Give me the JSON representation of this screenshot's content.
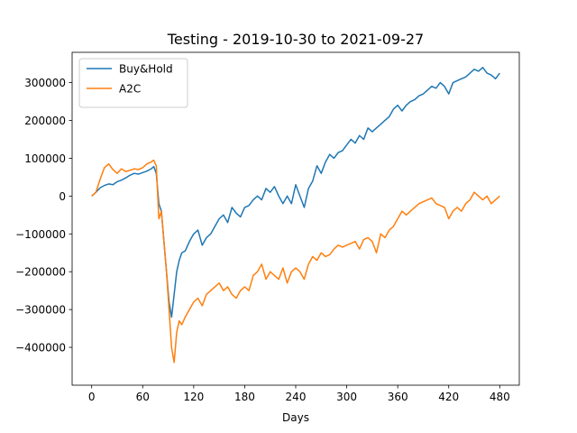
{
  "chart_data": {
    "type": "line",
    "title": "Testing - 2019-10-30 to 2021-09-27",
    "xlabel": "Days",
    "ylabel": "",
    "xlim": [
      -23,
      503
    ],
    "ylim": [
      -500000,
      380000
    ],
    "xticks": [
      0,
      60,
      120,
      180,
      240,
      300,
      360,
      420,
      480
    ],
    "xtick_labels": [
      "0",
      "60",
      "120",
      "180",
      "240",
      "300",
      "360",
      "420",
      "480"
    ],
    "yticks": [
      -400000,
      -300000,
      -200000,
      -100000,
      0,
      100000,
      200000,
      300000
    ],
    "ytick_labels": [
      "−400000",
      "−300000",
      "−200000",
      "−100000",
      "0",
      "100000",
      "200000",
      "300000"
    ],
    "grid": false,
    "legend_position": "top-left",
    "series": [
      {
        "name": "Buy&Hold",
        "color": "#1f77b4",
        "x": [
          0,
          5,
          10,
          15,
          20,
          25,
          30,
          35,
          40,
          45,
          50,
          55,
          60,
          65,
          70,
          73,
          76,
          79,
          82,
          85,
          88,
          91,
          94,
          97,
          100,
          103,
          106,
          110,
          115,
          120,
          125,
          130,
          135,
          140,
          145,
          150,
          155,
          160,
          165,
          170,
          175,
          180,
          185,
          190,
          195,
          200,
          205,
          210,
          215,
          220,
          225,
          230,
          235,
          240,
          245,
          250,
          255,
          260,
          265,
          270,
          275,
          280,
          285,
          290,
          295,
          300,
          305,
          310,
          315,
          320,
          325,
          330,
          335,
          340,
          345,
          350,
          355,
          360,
          365,
          370,
          375,
          380,
          385,
          390,
          395,
          400,
          405,
          410,
          415,
          420,
          425,
          430,
          435,
          440,
          445,
          450,
          455,
          460,
          465,
          470,
          475,
          480
        ],
        "y": [
          0,
          10000,
          22000,
          28000,
          32000,
          30000,
          38000,
          42000,
          48000,
          55000,
          60000,
          58000,
          62000,
          66000,
          72000,
          78000,
          60000,
          -20000,
          -40000,
          -120000,
          -200000,
          -280000,
          -320000,
          -260000,
          -200000,
          -170000,
          -150000,
          -145000,
          -120000,
          -100000,
          -90000,
          -130000,
          -110000,
          -100000,
          -80000,
          -60000,
          -50000,
          -70000,
          -30000,
          -45000,
          -55000,
          -30000,
          -25000,
          -10000,
          0,
          -10000,
          20000,
          10000,
          25000,
          0,
          -20000,
          0,
          -20000,
          30000,
          0,
          -30000,
          20000,
          40000,
          80000,
          60000,
          90000,
          110000,
          100000,
          115000,
          120000,
          135000,
          150000,
          140000,
          160000,
          150000,
          180000,
          170000,
          180000,
          190000,
          200000,
          210000,
          230000,
          240000,
          225000,
          240000,
          250000,
          255000,
          265000,
          270000,
          280000,
          290000,
          285000,
          300000,
          290000,
          270000,
          300000,
          305000,
          310000,
          315000,
          325000,
          335000,
          330000,
          340000,
          325000,
          320000,
          310000,
          325000
        ]
      },
      {
        "name": "A2C",
        "color": "#ff7f0e",
        "x": [
          0,
          5,
          10,
          15,
          20,
          25,
          30,
          35,
          40,
          45,
          50,
          55,
          60,
          65,
          70,
          73,
          76,
          79,
          82,
          85,
          88,
          91,
          94,
          97,
          100,
          103,
          106,
          110,
          115,
          120,
          125,
          130,
          135,
          140,
          145,
          150,
          155,
          160,
          165,
          170,
          175,
          180,
          185,
          190,
          195,
          200,
          205,
          210,
          215,
          220,
          225,
          230,
          235,
          240,
          245,
          250,
          255,
          260,
          265,
          270,
          275,
          280,
          285,
          290,
          295,
          300,
          305,
          310,
          315,
          320,
          325,
          330,
          335,
          340,
          345,
          350,
          355,
          360,
          365,
          370,
          375,
          380,
          385,
          390,
          395,
          400,
          405,
          410,
          415,
          420,
          425,
          430,
          435,
          440,
          445,
          450,
          455,
          460,
          465,
          470,
          475,
          480
        ],
        "y": [
          0,
          10000,
          45000,
          75000,
          85000,
          70000,
          60000,
          72000,
          65000,
          68000,
          72000,
          70000,
          75000,
          85000,
          90000,
          95000,
          80000,
          -60000,
          -40000,
          -120000,
          -200000,
          -300000,
          -400000,
          -440000,
          -360000,
          -330000,
          -340000,
          -320000,
          -300000,
          -280000,
          -270000,
          -290000,
          -260000,
          -250000,
          -240000,
          -230000,
          -250000,
          -240000,
          -260000,
          -270000,
          -250000,
          -240000,
          -250000,
          -210000,
          -200000,
          -180000,
          -220000,
          -200000,
          -210000,
          -220000,
          -190000,
          -230000,
          -200000,
          -190000,
          -200000,
          -220000,
          -180000,
          -160000,
          -170000,
          -150000,
          -160000,
          -155000,
          -140000,
          -130000,
          -135000,
          -130000,
          -125000,
          -120000,
          -140000,
          -115000,
          -110000,
          -120000,
          -150000,
          -100000,
          -110000,
          -90000,
          -80000,
          -60000,
          -40000,
          -50000,
          -40000,
          -30000,
          -20000,
          -15000,
          -10000,
          -5000,
          -20000,
          -25000,
          -30000,
          -60000,
          -40000,
          -30000,
          -40000,
          -20000,
          -10000,
          10000,
          0,
          -10000,
          0,
          -20000,
          -10000,
          0
        ]
      }
    ]
  }
}
